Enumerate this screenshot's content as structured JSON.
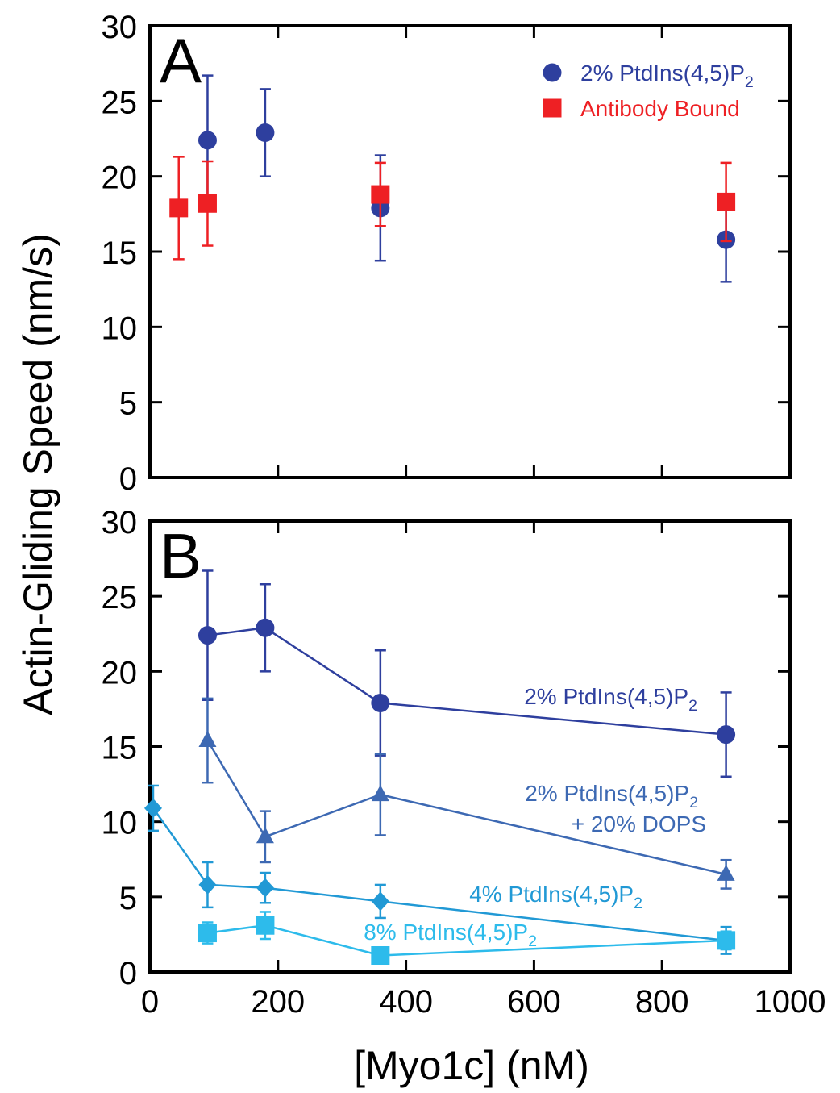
{
  "ylabel": "Actin-Gliding Speed (nm/s)",
  "xlabel": "[Myo1c] (nM)",
  "chart_data": [
    {
      "type": "scatter",
      "panel_label": "A",
      "xlim": [
        0,
        1000
      ],
      "ylim": [
        0,
        30
      ],
      "xticks": [
        0,
        200,
        400,
        600,
        800,
        1000
      ],
      "yticks": [
        0,
        5,
        10,
        15,
        20,
        25,
        30
      ],
      "legend_placement": "top-right",
      "series": [
        {
          "name": "2% PtdIns(4,5)P2",
          "name_main": "2% PtdIns(4,5)P",
          "name_sub": "2",
          "marker": "circle",
          "color": "#2E3F9E",
          "connected": false,
          "x": [
            90,
            180,
            360,
            900
          ],
          "y": [
            22.4,
            22.9,
            17.9,
            15.8
          ],
          "err": [
            4.3,
            2.9,
            3.5,
            2.8
          ]
        },
        {
          "name": "Antibody Bound",
          "name_main": "Antibody Bound",
          "name_sub": "",
          "marker": "square",
          "color": "#EE2024",
          "connected": false,
          "x": [
            45,
            90,
            360,
            900
          ],
          "y": [
            17.9,
            18.2,
            18.8,
            18.3
          ],
          "err": [
            3.4,
            2.8,
            2.1,
            2.6
          ]
        }
      ]
    },
    {
      "type": "line",
      "panel_label": "B",
      "xlim": [
        0,
        1000
      ],
      "ylim": [
        0,
        30
      ],
      "xticks": [
        0,
        200,
        400,
        600,
        800,
        1000
      ],
      "yticks": [
        0,
        5,
        10,
        15,
        20,
        25,
        30
      ],
      "series": [
        {
          "name": "2% PtdIns(4,5)P2",
          "label_lines": [
            {
              "main": "2% PtdIns(4,5)P",
              "sub": "2"
            }
          ],
          "marker": "circle",
          "color": "#2E3F9E",
          "connected": true,
          "x": [
            90,
            180,
            360,
            900
          ],
          "y": [
            22.4,
            22.9,
            17.9,
            15.8
          ],
          "err": [
            4.3,
            2.9,
            3.5,
            2.8
          ]
        },
        {
          "name": "2% PtdIns(4,5)P2 + 20% DOPS",
          "label_lines": [
            {
              "main": "2% PtdIns(4,5)P",
              "sub": "2"
            },
            {
              "main": "+ 20% DOPS",
              "sub": ""
            }
          ],
          "marker": "triangle",
          "color": "#3D69B3",
          "connected": true,
          "x": [
            90,
            180,
            360,
            900
          ],
          "y": [
            15.4,
            9.0,
            11.8,
            6.5
          ],
          "err": [
            2.8,
            1.7,
            2.7,
            0.95
          ]
        },
        {
          "name": "4% PtdIns(4,5)P2",
          "label_lines": [
            {
              "main": "4% PtdIns(4,5)P",
              "sub": "2"
            }
          ],
          "marker": "diamond",
          "color": "#2199D5",
          "connected": true,
          "x": [
            5,
            90,
            180,
            360,
            900
          ],
          "y": [
            10.9,
            5.8,
            5.6,
            4.7,
            2.1
          ],
          "err": [
            1.5,
            1.5,
            1.0,
            1.1,
            0.9
          ]
        },
        {
          "name": "8% PtdIns(4,5)P2",
          "label_lines": [
            {
              "main": "8% PtdIns(4,5)P",
              "sub": "2"
            }
          ],
          "marker": "square",
          "color": "#2DBBEB",
          "connected": true,
          "x": [
            90,
            180,
            360,
            900
          ],
          "y": [
            2.6,
            3.1,
            1.1,
            2.1
          ],
          "err": [
            0.7,
            0.9,
            0.25,
            0.6
          ]
        }
      ]
    }
  ]
}
